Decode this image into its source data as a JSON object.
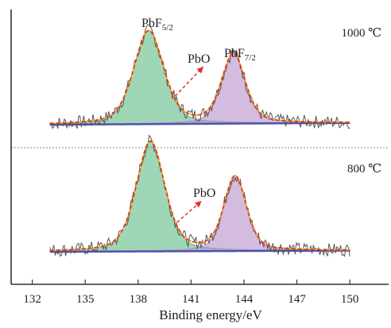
{
  "chart_data": {
    "type": "line",
    "xlabel": "Binding energy/eV",
    "ylabel": "",
    "xlim": [
      130.8,
      152.2
    ],
    "x_ticks": [
      132,
      135,
      138,
      141,
      144,
      147,
      150
    ],
    "tick_labels": [
      "132",
      "135",
      "138",
      "141",
      "144",
      "147",
      "150"
    ],
    "grid": false,
    "panels": [
      {
        "temperature_label": "1000 ℃",
        "components": [
          {
            "name_main": "PbF",
            "name_sub": "5/2",
            "center": 138.6,
            "height": 0.78,
            "fwhm": 2.0,
            "fill": "#5dba85"
          },
          {
            "name_main": "PbF",
            "name_sub": "7/2",
            "center": 143.4,
            "height": 0.58,
            "fwhm": 1.6,
            "fill": "#b58fc9"
          }
        ],
        "annotation": {
          "text": "PbO",
          "arrow_from_x": 140.1,
          "arrow_to_x": 141.7
        }
      },
      {
        "temperature_label": "800 ℃",
        "components": [
          {
            "center": 138.7,
            "height": 0.92,
            "fwhm": 1.9,
            "fill": "#5dba85"
          },
          {
            "center": 143.5,
            "height": 0.62,
            "fwhm": 1.5,
            "fill": "#b58fc9"
          }
        ],
        "annotation": {
          "text": "PbO",
          "arrow_from_x": 140.2,
          "arrow_to_x": 141.6
        }
      }
    ],
    "colors": {
      "raw": "#555555",
      "envelope": "#e0302a",
      "fit": "#f0c020",
      "baseline": "#5050b0",
      "divider": "#888888"
    }
  }
}
